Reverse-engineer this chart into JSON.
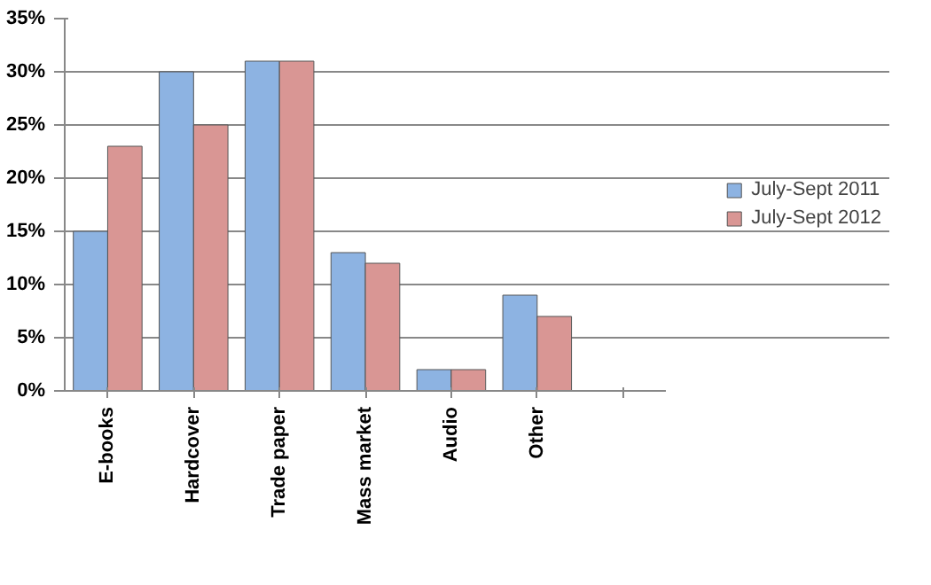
{
  "chart_data": {
    "type": "bar",
    "categories": [
      "E-books",
      "Hardcover",
      "Trade paper",
      "Mass market",
      "Audio",
      "Other",
      null
    ],
    "series": [
      {
        "name": "July-Sept 2011",
        "color": "#8db3e2",
        "values": [
          15,
          30,
          31,
          13,
          2,
          9,
          null
        ]
      },
      {
        "name": "July-Sept 2012",
        "color": "#d99694",
        "values": [
          23,
          25,
          31,
          12,
          2,
          7,
          null
        ]
      }
    ],
    "ylim": [
      0,
      35
    ],
    "yticks": [
      {
        "value": 0,
        "label": "0%"
      },
      {
        "value": 5,
        "label": "5%"
      },
      {
        "value": 10,
        "label": "10%"
      },
      {
        "value": 15,
        "label": "15%"
      },
      {
        "value": 20,
        "label": "20%"
      },
      {
        "value": 25,
        "label": "25%"
      },
      {
        "value": 30,
        "label": "30%"
      },
      {
        "value": 35,
        "label": "35%"
      }
    ],
    "grid": "y",
    "legend": "right"
  }
}
